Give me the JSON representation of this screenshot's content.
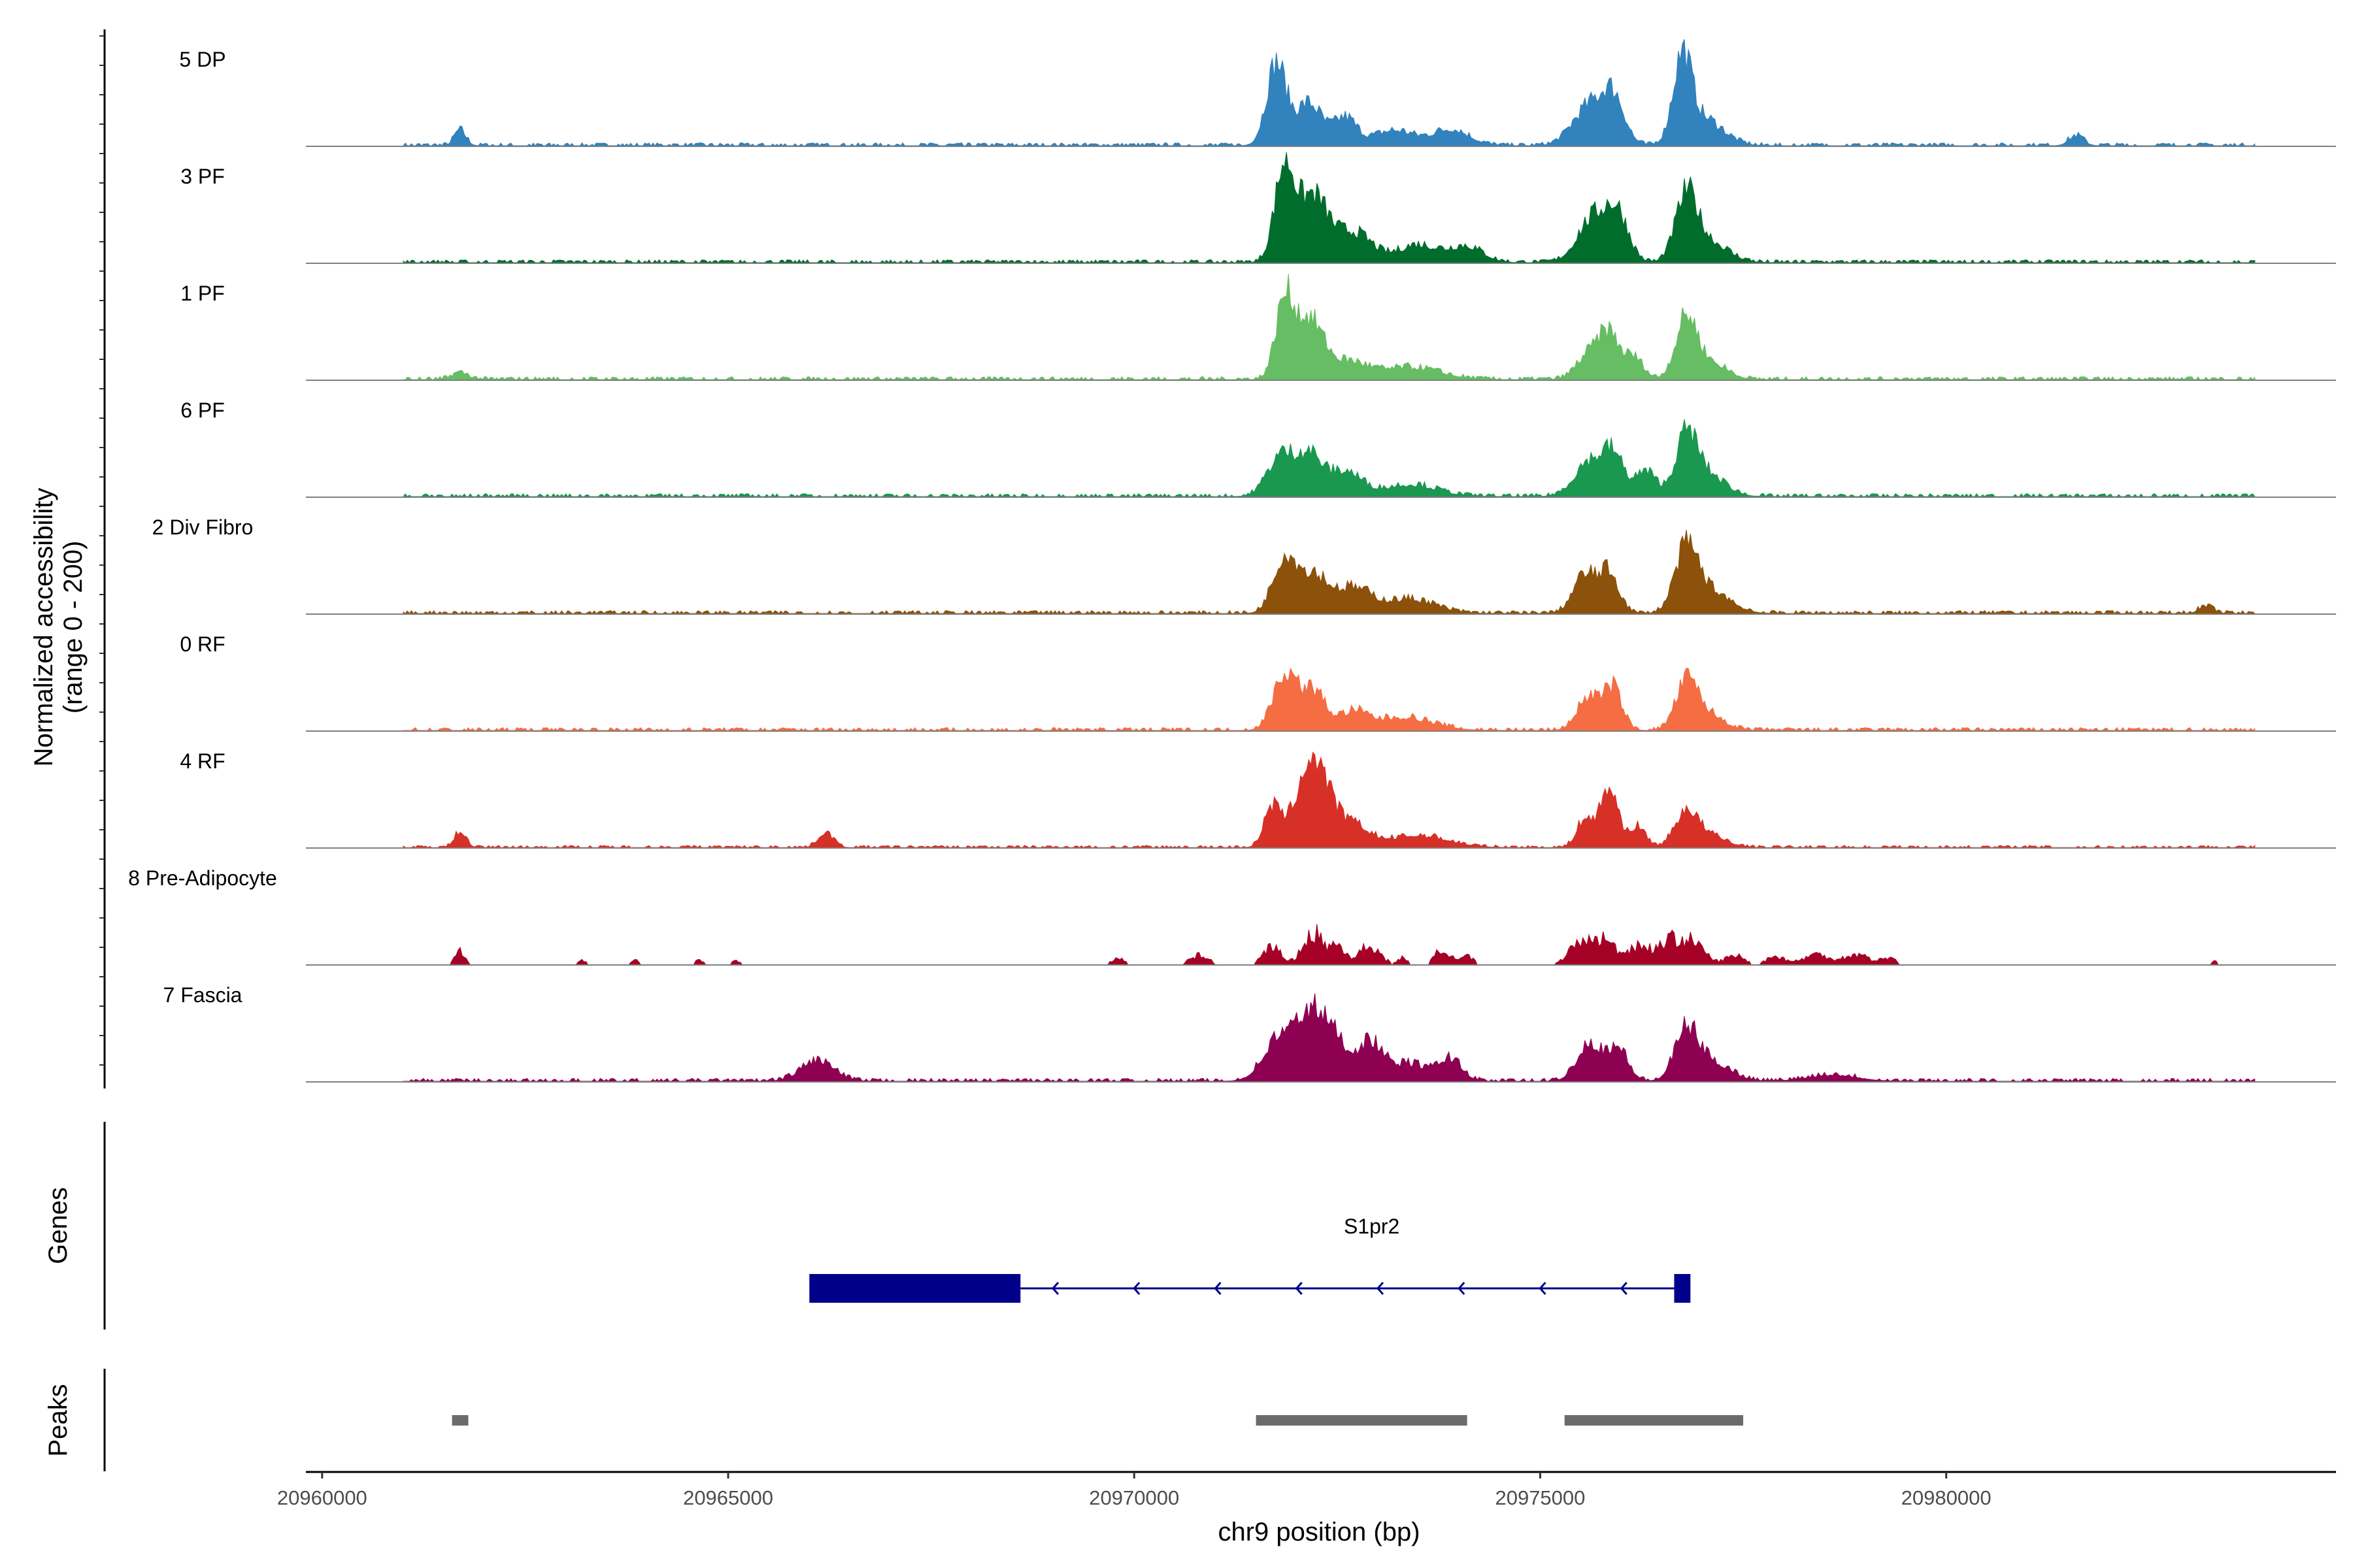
{
  "chart_data": {
    "type": "area",
    "title": "",
    "xlabel": "chr9 position (bp)",
    "ylabel_line1": "Normalized accessibility",
    "ylabel_line2": "(range 0 - 200)",
    "xlim": [
      20959800,
      20984800
    ],
    "ylim": [
      0,
      200
    ],
    "x_ticks": [
      20960000,
      20965000,
      20970000,
      20975000,
      20980000
    ],
    "x_tick_labels": [
      "20960000",
      "20965000",
      "20970000",
      "20975000",
      "20980000"
    ],
    "series": [
      {
        "name": "5 DP",
        "color": "#3182bd",
        "baseline": 4,
        "start": 20961000,
        "end": 20983800,
        "peaks": [
          [
            20961700,
            28,
            70
          ],
          [
            20971750,
            150,
            120
          ],
          [
            20972150,
            78,
            160
          ],
          [
            20972600,
            50,
            140
          ],
          [
            20973200,
            28,
            240
          ],
          [
            20973900,
            30,
            220
          ],
          [
            20975600,
            70,
            200
          ],
          [
            20975900,
            82,
            140
          ],
          [
            20976750,
            148,
            110
          ],
          [
            20977000,
            50,
            240
          ],
          [
            20981600,
            18,
            90
          ]
        ]
      },
      {
        "name": "3 PF",
        "color": "#006d2c",
        "baseline": 4,
        "start": 20961000,
        "end": 20983800,
        "peaks": [
          [
            20971850,
            172,
            120
          ],
          [
            20972200,
            120,
            180
          ],
          [
            20972700,
            55,
            220
          ],
          [
            20973500,
            32,
            260
          ],
          [
            20974100,
            28,
            200
          ],
          [
            20975650,
            80,
            190
          ],
          [
            20975950,
            82,
            140
          ],
          [
            20976800,
            110,
            130
          ],
          [
            20977050,
            40,
            240
          ]
        ]
      },
      {
        "name": "1 PF",
        "color": "#66bd63",
        "baseline": 4,
        "start": 20961000,
        "end": 20983800,
        "peaks": [
          [
            20961700,
            12,
            100
          ],
          [
            20971850,
            132,
            110
          ],
          [
            20972150,
            110,
            180
          ],
          [
            20972650,
            30,
            220
          ],
          [
            20973400,
            22,
            360
          ],
          [
            20975600,
            45,
            150
          ],
          [
            20975850,
            78,
            120
          ],
          [
            20976150,
            40,
            120
          ],
          [
            20976800,
            110,
            130
          ],
          [
            20977100,
            30,
            200
          ]
        ]
      },
      {
        "name": "6 PF",
        "color": "#1a9850",
        "baseline": 4,
        "start": 20961000,
        "end": 20983800,
        "peaks": [
          [
            20971800,
            72,
            160
          ],
          [
            20972150,
            75,
            160
          ],
          [
            20972600,
            45,
            200
          ],
          [
            20973400,
            22,
            320
          ],
          [
            20975600,
            62,
            180
          ],
          [
            20975900,
            72,
            130
          ],
          [
            20976300,
            45,
            130
          ],
          [
            20976800,
            102,
            130
          ],
          [
            20977050,
            40,
            220
          ]
        ]
      },
      {
        "name": "2 Div Fibro",
        "color": "#8c510a",
        "baseline": 4,
        "start": 20961000,
        "end": 20983800,
        "peaks": [
          [
            20971850,
            100,
            140
          ],
          [
            20972200,
            70,
            180
          ],
          [
            20972700,
            45,
            220
          ],
          [
            20973400,
            26,
            300
          ],
          [
            20975550,
            70,
            140
          ],
          [
            20975850,
            72,
            120
          ],
          [
            20976800,
            110,
            140
          ],
          [
            20977100,
            40,
            240
          ],
          [
            20983200,
            12,
            90
          ]
        ]
      },
      {
        "name": "0 RF",
        "color": "#f46d43",
        "baseline": 4,
        "start": 20961000,
        "end": 20983800,
        "peaks": [
          [
            20971850,
            100,
            140
          ],
          [
            20972200,
            72,
            160
          ],
          [
            20972700,
            30,
            160
          ],
          [
            20973300,
            24,
            360
          ],
          [
            20975600,
            62,
            140
          ],
          [
            20975900,
            75,
            110
          ],
          [
            20976800,
            82,
            130
          ],
          [
            20977050,
            30,
            200
          ]
        ]
      },
      {
        "name": "4 RF",
        "color": "#d73027",
        "baseline": 3,
        "start": 20961000,
        "end": 20983800,
        "peaks": [
          [
            20961700,
            30,
            70
          ],
          [
            20966200,
            28,
            90
          ],
          [
            20971700,
            70,
            100
          ],
          [
            20972200,
            165,
            200
          ],
          [
            20972700,
            38,
            200
          ],
          [
            20973500,
            22,
            360
          ],
          [
            20975550,
            52,
            100
          ],
          [
            20975850,
            110,
            110
          ],
          [
            20976200,
            38,
            100
          ],
          [
            20976800,
            65,
            140
          ],
          [
            20977100,
            20,
            200
          ]
        ]
      },
      {
        "name": "8 Pre-Adipocyte",
        "color": "#a50026",
        "baseline": 0,
        "start": 20961000,
        "end": 20983800,
        "sparse": true,
        "peaks": [
          [
            20961700,
            30,
            60
          ],
          [
            20963200,
            10,
            60
          ],
          [
            20963850,
            10,
            60
          ],
          [
            20964650,
            10,
            60
          ],
          [
            20965100,
            10,
            60
          ],
          [
            20969800,
            15,
            80
          ],
          [
            20970800,
            20,
            120
          ],
          [
            20971700,
            38,
            110
          ],
          [
            20972200,
            68,
            120
          ],
          [
            20972500,
            40,
            100
          ],
          [
            20972900,
            40,
            130
          ],
          [
            20973300,
            15,
            60
          ],
          [
            20973800,
            35,
            90
          ],
          [
            20974100,
            18,
            80
          ],
          [
            20975500,
            45,
            150
          ],
          [
            20975800,
            48,
            130
          ],
          [
            20976200,
            40,
            130
          ],
          [
            20976600,
            50,
            160
          ],
          [
            20976900,
            40,
            140
          ],
          [
            20977400,
            20,
            120
          ],
          [
            20977900,
            18,
            120
          ],
          [
            20978400,
            22,
            160
          ],
          [
            20978900,
            22,
            160
          ],
          [
            20979300,
            15,
            90
          ],
          [
            20983300,
            8,
            60
          ]
        ]
      },
      {
        "name": "7 Fascia",
        "color": "#8e0152",
        "baseline": 4,
        "start": 20961000,
        "end": 20983800,
        "peaks": [
          [
            20966100,
            38,
            200
          ],
          [
            20971800,
            80,
            200
          ],
          [
            20972200,
            120,
            170
          ],
          [
            20972500,
            60,
            140
          ],
          [
            20972900,
            72,
            160
          ],
          [
            20973400,
            32,
            220
          ],
          [
            20973900,
            40,
            140
          ],
          [
            20975600,
            68,
            150
          ],
          [
            20975950,
            60,
            130
          ],
          [
            20976800,
            85,
            140
          ],
          [
            20977100,
            35,
            240
          ],
          [
            20978600,
            12,
            300
          ]
        ]
      }
    ],
    "genes": [
      {
        "name": "S1pr2",
        "strand": "-",
        "exons": [
          [
            20966000,
            20968600
          ],
          [
            20976650,
            20976850
          ]
        ],
        "intron": [
          20968600,
          20976650
        ],
        "color": "#00008b"
      }
    ],
    "peaks": [
      [
        20961600,
        20961800
      ],
      [
        20971500,
        20974100
      ],
      [
        20975300,
        20977500
      ]
    ],
    "panel_titles": {
      "genes": "Genes",
      "peaks": "Peaks"
    }
  }
}
